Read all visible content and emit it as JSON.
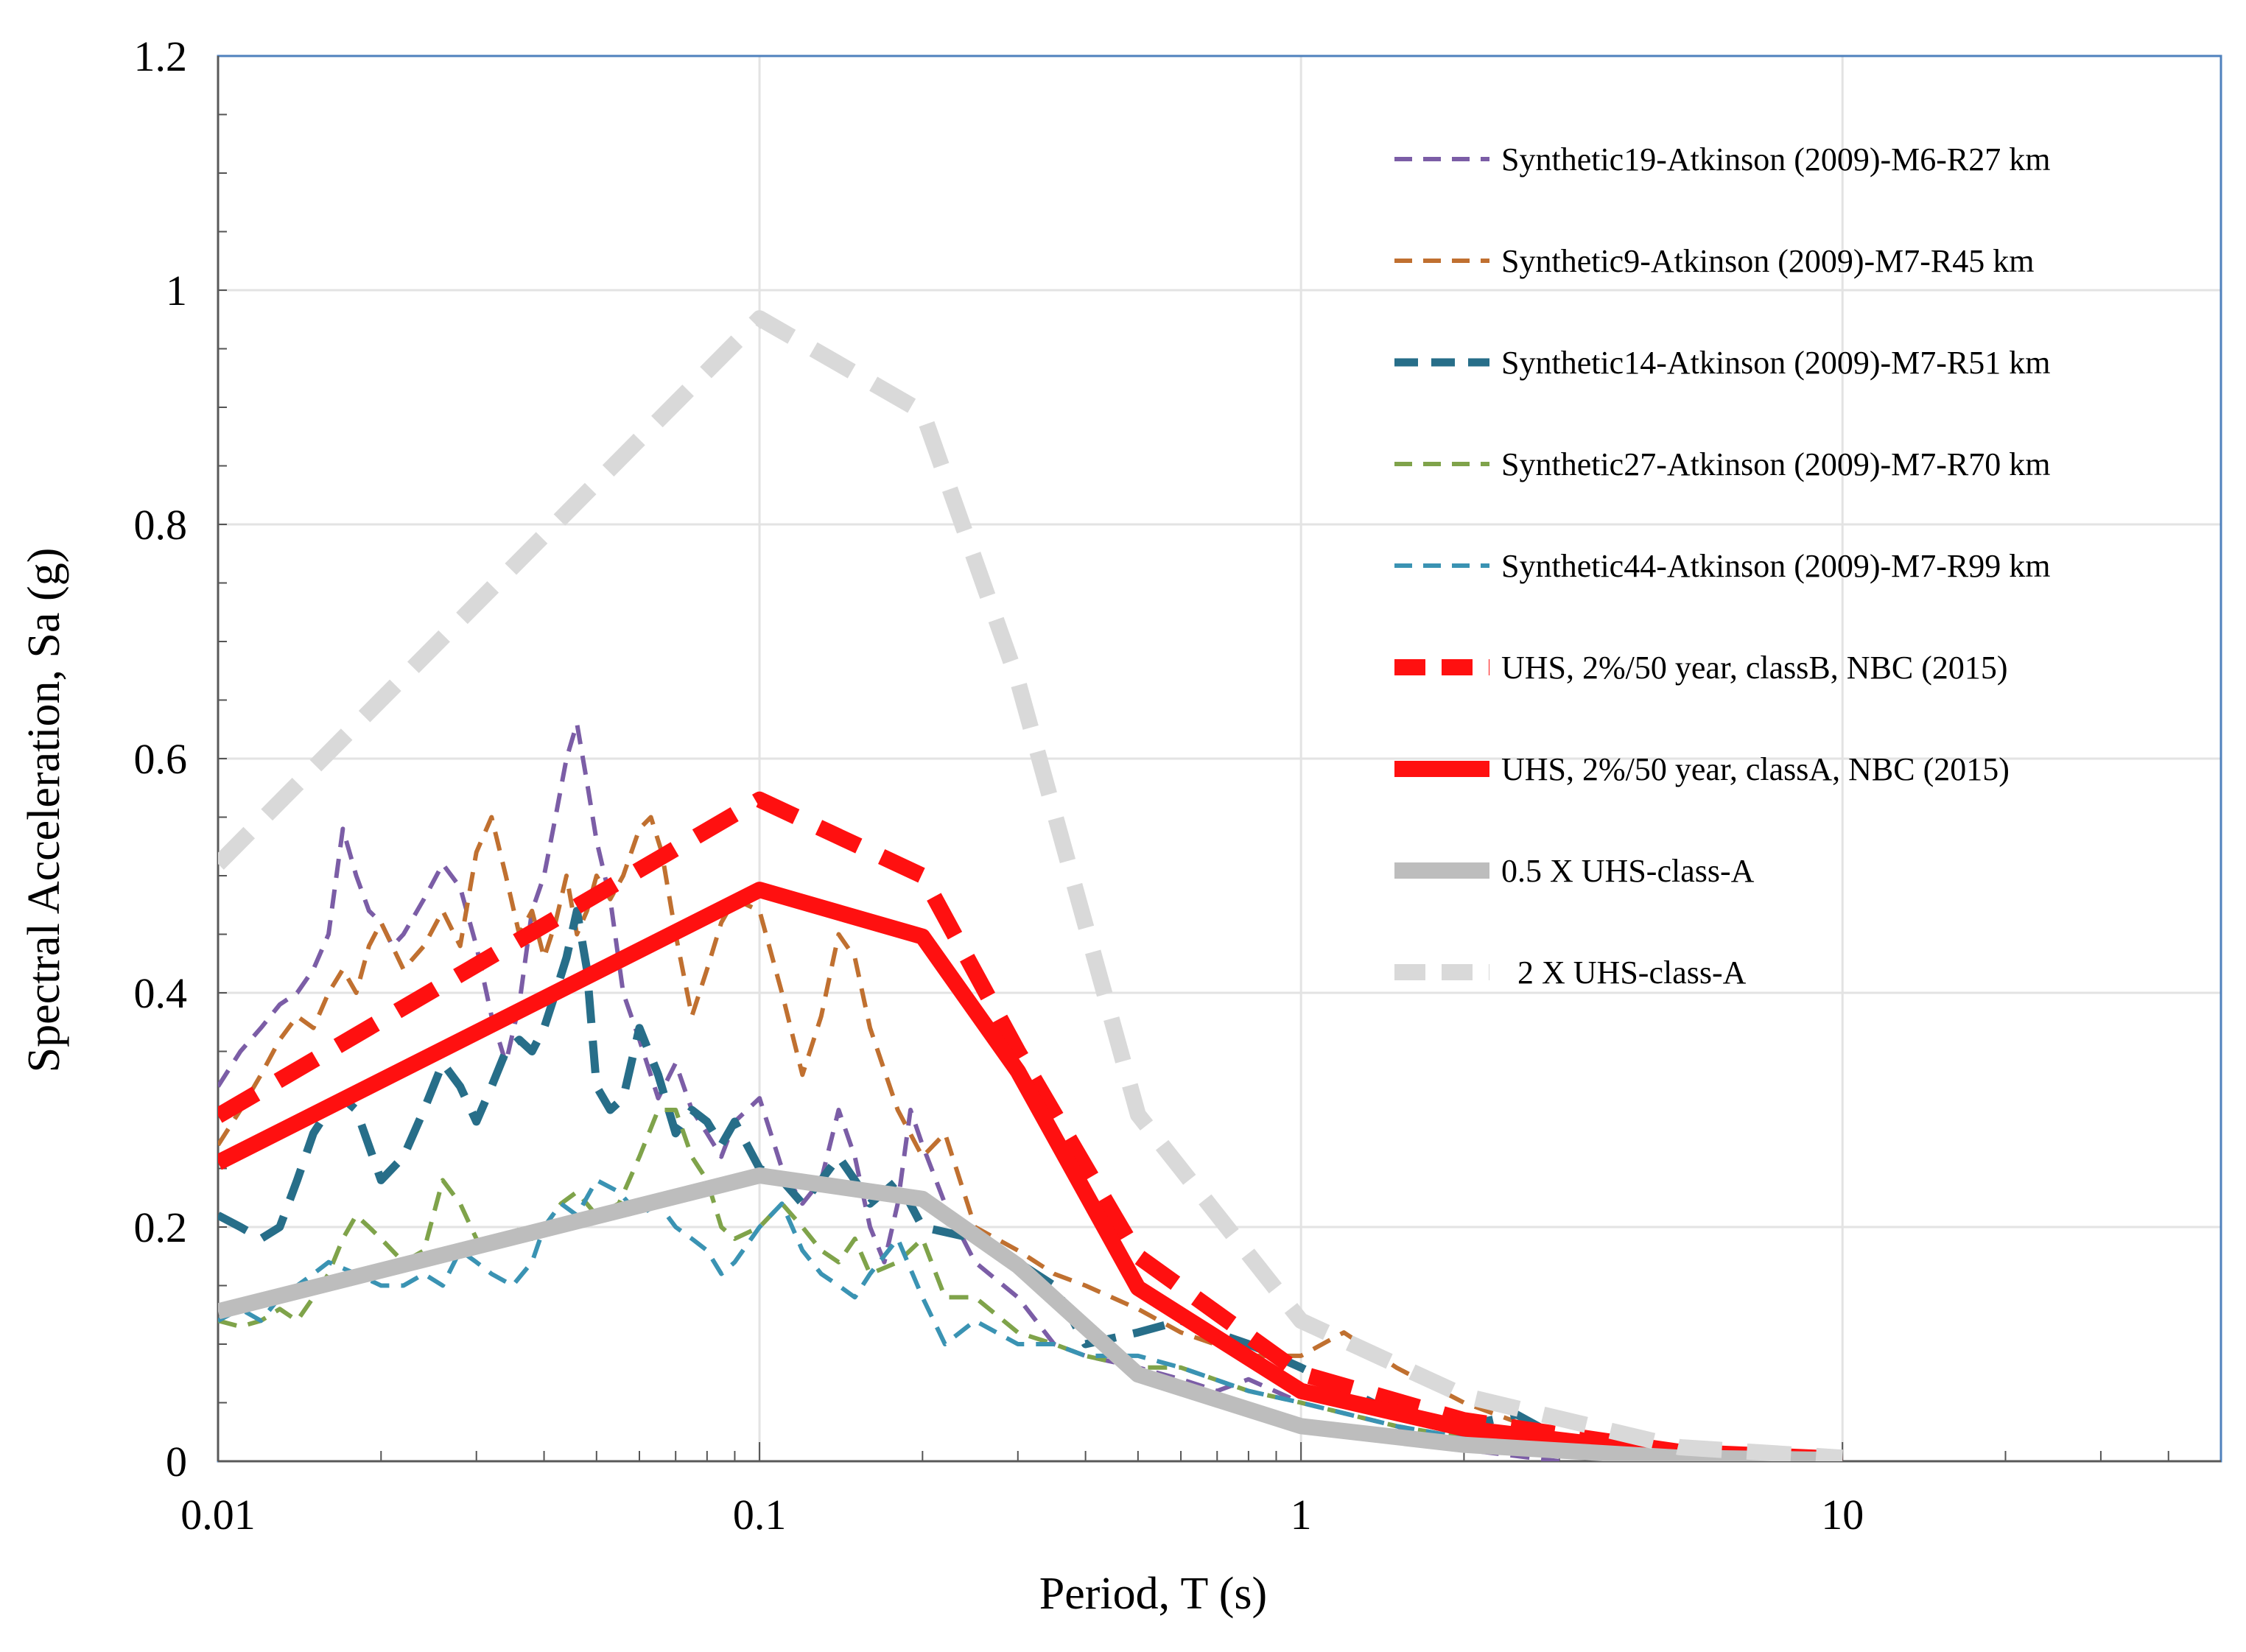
{
  "chart_data": {
    "type": "line",
    "title": "",
    "xlabel": "Period, T (s)",
    "ylabel": "Spectral Acceleration, Sa (g)",
    "xscale": "log",
    "xlim": [
      0.01,
      50
    ],
    "ylim": [
      0,
      1.2
    ],
    "xticks": [
      0.01,
      0.1,
      1,
      10
    ],
    "xtick_labels": [
      "0.01",
      "0.1",
      "1",
      "10"
    ],
    "yticks": [
      0,
      0.2,
      0.4,
      0.6,
      0.8,
      1,
      1.2
    ],
    "ytick_labels": [
      "0",
      "0.2",
      "0.4",
      "0.6",
      "0.8",
      "1",
      "1.2"
    ],
    "grid": true,
    "legend_position": "top-right",
    "series": [
      {
        "name": "Synthetic19-Atkinson (2009)-M6-R27 km",
        "color": "#7b5da6",
        "style": "dashed",
        "weight": "thin",
        "x": [
          0.01,
          0.011,
          0.012,
          0.013,
          0.014,
          0.015,
          0.016,
          0.017,
          0.018,
          0.019,
          0.02,
          0.021,
          0.022,
          0.024,
          0.026,
          0.028,
          0.03,
          0.032,
          0.034,
          0.036,
          0.038,
          0.04,
          0.042,
          0.044,
          0.046,
          0.048,
          0.05,
          0.053,
          0.056,
          0.06,
          0.065,
          0.07,
          0.075,
          0.08,
          0.085,
          0.09,
          0.1,
          0.11,
          0.12,
          0.13,
          0.14,
          0.15,
          0.16,
          0.17,
          0.18,
          0.19,
          0.2,
          0.22,
          0.25,
          0.3,
          0.35,
          0.4,
          0.5,
          0.6,
          0.7,
          0.8,
          1,
          1.5,
          2,
          3
        ],
        "y": [
          0.32,
          0.35,
          0.37,
          0.39,
          0.4,
          0.42,
          0.45,
          0.54,
          0.5,
          0.47,
          0.46,
          0.44,
          0.45,
          0.48,
          0.51,
          0.49,
          0.44,
          0.38,
          0.34,
          0.39,
          0.47,
          0.5,
          0.55,
          0.6,
          0.63,
          0.58,
          0.53,
          0.48,
          0.4,
          0.36,
          0.31,
          0.34,
          0.3,
          0.28,
          0.26,
          0.29,
          0.31,
          0.25,
          0.22,
          0.24,
          0.3,
          0.26,
          0.2,
          0.17,
          0.22,
          0.3,
          0.27,
          0.22,
          0.17,
          0.14,
          0.1,
          0.09,
          0.08,
          0.07,
          0.06,
          0.07,
          0.05,
          0.03,
          0.01,
          0.0
        ]
      },
      {
        "name": "Synthetic9-Atkinson (2009)-M7-R45 km",
        "color": "#c07030",
        "style": "dashed",
        "weight": "thin",
        "x": [
          0.01,
          0.011,
          0.012,
          0.013,
          0.014,
          0.015,
          0.016,
          0.017,
          0.018,
          0.019,
          0.02,
          0.022,
          0.024,
          0.026,
          0.028,
          0.03,
          0.032,
          0.034,
          0.036,
          0.038,
          0.04,
          0.042,
          0.044,
          0.046,
          0.048,
          0.05,
          0.053,
          0.056,
          0.06,
          0.063,
          0.066,
          0.07,
          0.075,
          0.08,
          0.085,
          0.09,
          0.1,
          0.11,
          0.12,
          0.13,
          0.14,
          0.15,
          0.16,
          0.18,
          0.2,
          0.22,
          0.25,
          0.3,
          0.35,
          0.4,
          0.5,
          0.6,
          0.8,
          1,
          1.2,
          1.5,
          2,
          3,
          4
        ],
        "y": [
          0.27,
          0.3,
          0.33,
          0.36,
          0.38,
          0.37,
          0.4,
          0.42,
          0.4,
          0.44,
          0.46,
          0.42,
          0.44,
          0.47,
          0.44,
          0.52,
          0.55,
          0.5,
          0.45,
          0.47,
          0.43,
          0.46,
          0.5,
          0.45,
          0.47,
          0.5,
          0.48,
          0.5,
          0.54,
          0.55,
          0.52,
          0.45,
          0.38,
          0.42,
          0.46,
          0.48,
          0.47,
          0.4,
          0.33,
          0.38,
          0.45,
          0.43,
          0.37,
          0.3,
          0.26,
          0.28,
          0.2,
          0.18,
          0.16,
          0.15,
          0.13,
          0.11,
          0.09,
          0.09,
          0.11,
          0.08,
          0.05,
          0.02,
          0.01
        ]
      },
      {
        "name": "Synthetic14-Atkinson (2009)-M7-R51 km",
        "color": "#276e89",
        "style": "dashed",
        "weight": "medium",
        "x": [
          0.01,
          0.011,
          0.012,
          0.013,
          0.014,
          0.015,
          0.016,
          0.017,
          0.018,
          0.02,
          0.022,
          0.024,
          0.026,
          0.028,
          0.03,
          0.032,
          0.034,
          0.036,
          0.038,
          0.04,
          0.042,
          0.044,
          0.046,
          0.048,
          0.05,
          0.053,
          0.056,
          0.06,
          0.065,
          0.07,
          0.075,
          0.08,
          0.085,
          0.09,
          0.1,
          0.11,
          0.12,
          0.13,
          0.14,
          0.15,
          0.16,
          0.18,
          0.2,
          0.25,
          0.3,
          0.35,
          0.4,
          0.5,
          0.6,
          0.8,
          1,
          1.5,
          2,
          2.5,
          3,
          4
        ],
        "y": [
          0.21,
          0.2,
          0.19,
          0.2,
          0.24,
          0.28,
          0.3,
          0.31,
          0.3,
          0.24,
          0.26,
          0.3,
          0.34,
          0.32,
          0.29,
          0.32,
          0.35,
          0.36,
          0.35,
          0.37,
          0.4,
          0.43,
          0.47,
          0.42,
          0.32,
          0.3,
          0.31,
          0.37,
          0.33,
          0.28,
          0.3,
          0.29,
          0.27,
          0.29,
          0.25,
          0.24,
          0.22,
          0.24,
          0.26,
          0.24,
          0.22,
          0.24,
          0.2,
          0.19,
          0.17,
          0.15,
          0.1,
          0.11,
          0.12,
          0.1,
          0.08,
          0.04,
          0.03,
          0.04,
          0.02,
          0.01
        ]
      },
      {
        "name": "Synthetic27-Atkinson (2009)-M7-R70 km",
        "color": "#7fa34a",
        "style": "dashed",
        "weight": "thin",
        "x": [
          0.01,
          0.011,
          0.012,
          0.013,
          0.014,
          0.015,
          0.016,
          0.017,
          0.018,
          0.019,
          0.02,
          0.022,
          0.024,
          0.026,
          0.028,
          0.03,
          0.032,
          0.035,
          0.038,
          0.04,
          0.043,
          0.046,
          0.05,
          0.055,
          0.06,
          0.065,
          0.07,
          0.075,
          0.08,
          0.085,
          0.09,
          0.1,
          0.11,
          0.12,
          0.13,
          0.14,
          0.15,
          0.16,
          0.18,
          0.2,
          0.22,
          0.25,
          0.3,
          0.35,
          0.4,
          0.5,
          0.6,
          0.8,
          1,
          1.5,
          2,
          3
        ],
        "y": [
          0.12,
          0.115,
          0.12,
          0.13,
          0.12,
          0.14,
          0.16,
          0.19,
          0.21,
          0.2,
          0.19,
          0.17,
          0.18,
          0.24,
          0.22,
          0.19,
          0.18,
          0.2,
          0.19,
          0.2,
          0.22,
          0.23,
          0.21,
          0.22,
          0.26,
          0.3,
          0.3,
          0.26,
          0.24,
          0.2,
          0.19,
          0.2,
          0.22,
          0.2,
          0.18,
          0.17,
          0.19,
          0.16,
          0.17,
          0.19,
          0.14,
          0.14,
          0.11,
          0.1,
          0.09,
          0.08,
          0.08,
          0.06,
          0.05,
          0.03,
          0.02,
          0.01
        ]
      },
      {
        "name": "Synthetic44-Atkinson (2009)-M7-R99 km",
        "color": "#3a93b3",
        "style": "dashed",
        "weight": "thin",
        "x": [
          0.01,
          0.011,
          0.012,
          0.013,
          0.014,
          0.015,
          0.016,
          0.018,
          0.02,
          0.022,
          0.024,
          0.026,
          0.028,
          0.03,
          0.032,
          0.035,
          0.038,
          0.04,
          0.043,
          0.046,
          0.05,
          0.055,
          0.06,
          0.065,
          0.07,
          0.075,
          0.08,
          0.085,
          0.09,
          0.1,
          0.11,
          0.12,
          0.13,
          0.14,
          0.15,
          0.16,
          0.18,
          0.2,
          0.22,
          0.25,
          0.3,
          0.35,
          0.4,
          0.5,
          0.6,
          0.8,
          1,
          1.5,
          2,
          3
        ],
        "y": [
          0.12,
          0.13,
          0.12,
          0.14,
          0.15,
          0.16,
          0.17,
          0.16,
          0.15,
          0.15,
          0.16,
          0.15,
          0.18,
          0.17,
          0.16,
          0.15,
          0.17,
          0.2,
          0.22,
          0.21,
          0.24,
          0.23,
          0.21,
          0.22,
          0.2,
          0.19,
          0.18,
          0.16,
          0.17,
          0.2,
          0.22,
          0.18,
          0.16,
          0.15,
          0.14,
          0.16,
          0.19,
          0.14,
          0.1,
          0.12,
          0.1,
          0.1,
          0.09,
          0.09,
          0.08,
          0.06,
          0.05,
          0.03,
          0.02,
          0.01
        ]
      },
      {
        "name": "UHS, 2%/50 year, classB, NBC (2015)",
        "color": "#ff1010",
        "style": "dashed",
        "weight": "thick",
        "x": [
          0.01,
          0.1,
          0.2,
          0.3,
          0.5,
          1,
          2,
          5,
          10
        ],
        "y": [
          0.295,
          0.565,
          0.5,
          0.35,
          0.175,
          0.075,
          0.035,
          0.008,
          0.002
        ]
      },
      {
        "name": "UHS, 2%/50 year, classA, NBC (2015)",
        "color": "#ff1010",
        "style": "solid",
        "weight": "thick",
        "x": [
          0.01,
          0.1,
          0.2,
          0.3,
          0.5,
          1,
          2,
          5,
          10
        ],
        "y": [
          0.255,
          0.488,
          0.448,
          0.333,
          0.148,
          0.06,
          0.028,
          0.006,
          0.0015
        ]
      },
      {
        "name": "0.5 X UHS-class-A",
        "color": "#bdbdbd",
        "style": "solid",
        "weight": "thick",
        "x": [
          0.01,
          0.1,
          0.2,
          0.3,
          0.5,
          1,
          2,
          5,
          10
        ],
        "y": [
          0.128,
          0.244,
          0.224,
          0.167,
          0.074,
          0.03,
          0.014,
          0.003,
          0.001
        ]
      },
      {
        "name": "2 X UHS-class-A",
        "color": "#d9d9d9",
        "style": "dashed",
        "weight": "thick",
        "x": [
          0.01,
          0.1,
          0.2,
          0.3,
          0.5,
          1,
          2,
          5,
          10
        ],
        "y": [
          0.51,
          0.976,
          0.896,
          0.666,
          0.296,
          0.12,
          0.056,
          0.012,
          0.003
        ]
      }
    ]
  }
}
